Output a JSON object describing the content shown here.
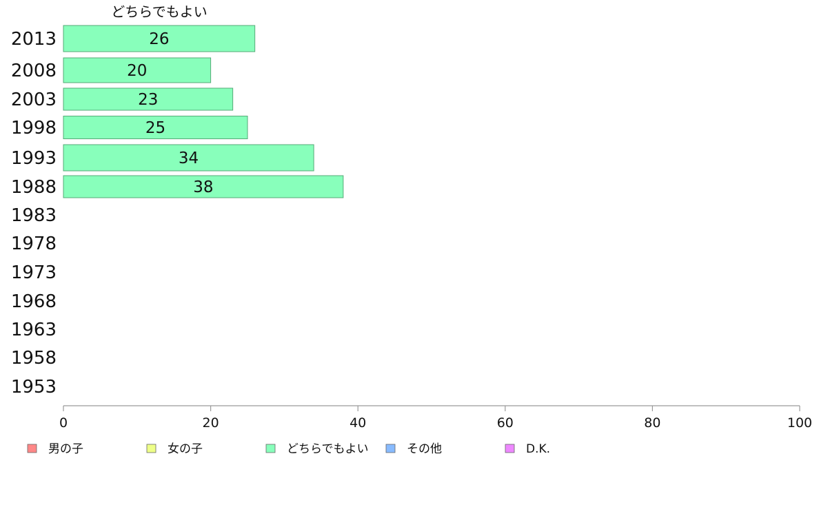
{
  "chart_data": {
    "type": "bar",
    "orientation": "horizontal",
    "series_header": "どちらでもよい",
    "categories": [
      "2013",
      "2008",
      "2003",
      "1998",
      "1993",
      "1988",
      "1983",
      "1978",
      "1973",
      "1968",
      "1963",
      "1958",
      "1953"
    ],
    "series": [
      {
        "name": "どちらでもよい",
        "color": "#88ffbb",
        "values": [
          26,
          20,
          23,
          25,
          34,
          38,
          null,
          null,
          null,
          null,
          null,
          null,
          null
        ]
      }
    ],
    "xlim": [
      0,
      100
    ],
    "xticks": [
      "0",
      "20",
      "40",
      "60",
      "80",
      "100"
    ],
    "grid": false,
    "legend_position": "bottom",
    "legend": [
      {
        "label": "男の子",
        "color": "#ff8888"
      },
      {
        "label": "女の子",
        "color": "#eeff88"
      },
      {
        "label": "どちらでもよい",
        "color": "#88ffbb"
      },
      {
        "label": "その他",
        "color": "#88bbff"
      },
      {
        "label": "D.K.",
        "color": "#ee88ff"
      }
    ]
  }
}
